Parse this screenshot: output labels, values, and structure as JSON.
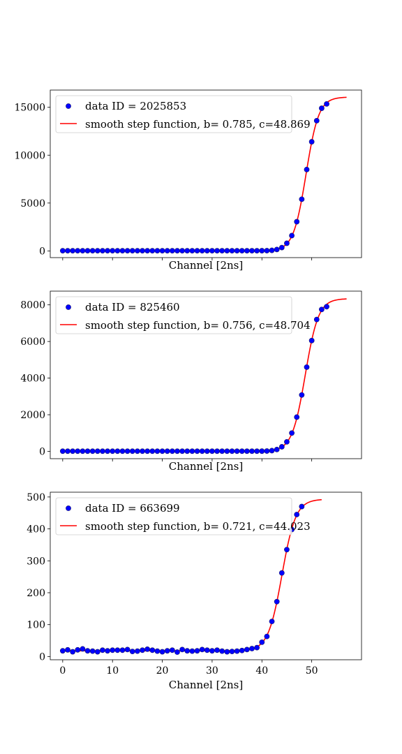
{
  "figure": {
    "colors": {
      "points": "#0000ff",
      "point_edge": "#1a1a66",
      "fit_line": "#ff0000",
      "axes": "#000000",
      "legend_border": "#cccccc"
    }
  },
  "chart_data": [
    {
      "type": "scatter",
      "xlabel": "Channel [2ns]",
      "ylim": [
        -700,
        16800
      ],
      "xlim": [
        -2.5,
        60
      ],
      "yticks": [
        0,
        5000,
        10000,
        15000
      ],
      "ytick_labels": [
        "0",
        "5000",
        "10000",
        "15000"
      ],
      "xticks": [
        0,
        10,
        20,
        30,
        40,
        50
      ],
      "xtick_labels": [
        "",
        "",
        "",
        "",
        "",
        ""
      ],
      "grid": false,
      "legend_position": "upper-left",
      "series": [
        {
          "name": "data ID = 2025853",
          "kind": "points",
          "x": [
            0,
            1,
            2,
            3,
            4,
            5,
            6,
            7,
            8,
            9,
            10,
            11,
            12,
            13,
            14,
            15,
            16,
            17,
            18,
            19,
            20,
            21,
            22,
            23,
            24,
            25,
            26,
            27,
            28,
            29,
            30,
            31,
            32,
            33,
            34,
            35,
            36,
            37,
            38,
            39,
            40,
            41,
            42,
            43,
            44,
            45,
            46,
            47,
            48,
            49,
            50,
            51,
            52,
            53
          ],
          "y": [
            20,
            20,
            20,
            20,
            20,
            20,
            20,
            20,
            20,
            20,
            20,
            20,
            20,
            20,
            20,
            20,
            20,
            20,
            20,
            20,
            20,
            20,
            20,
            20,
            20,
            20,
            20,
            20,
            20,
            20,
            20,
            20,
            20,
            20,
            20,
            20,
            20,
            20,
            20,
            20,
            25,
            30,
            60,
            150,
            350,
            800,
            1600,
            3050,
            5400,
            8500,
            11400,
            13600,
            14900,
            15350
          ]
        },
        {
          "name": "smooth step function, b= 0.785, c=48.869",
          "kind": "fit",
          "b": 0.785,
          "c": 48.869,
          "amplitude": 16050,
          "offset": 20,
          "x_range": [
            0,
            57
          ]
        }
      ]
    },
    {
      "type": "scatter",
      "xlabel": "Channel [2ns]",
      "ylim": [
        -400,
        8750
      ],
      "xlim": [
        -2.5,
        60
      ],
      "yticks": [
        0,
        2000,
        4000,
        6000,
        8000
      ],
      "ytick_labels": [
        "0",
        "2000",
        "4000",
        "6000",
        "8000"
      ],
      "xticks": [
        0,
        10,
        20,
        30,
        40,
        50
      ],
      "xtick_labels": [
        "",
        "",
        "",
        "",
        "",
        ""
      ],
      "grid": false,
      "legend_position": "upper-left",
      "series": [
        {
          "name": "data ID = 825460",
          "kind": "points",
          "x": [
            0,
            1,
            2,
            3,
            4,
            5,
            6,
            7,
            8,
            9,
            10,
            11,
            12,
            13,
            14,
            15,
            16,
            17,
            18,
            19,
            20,
            21,
            22,
            23,
            24,
            25,
            26,
            27,
            28,
            29,
            30,
            31,
            32,
            33,
            34,
            35,
            36,
            37,
            38,
            39,
            40,
            41,
            42,
            43,
            44,
            45,
            46,
            47,
            48,
            49,
            50,
            51,
            52,
            53
          ],
          "y": [
            10,
            10,
            10,
            10,
            10,
            10,
            10,
            10,
            10,
            10,
            10,
            10,
            10,
            10,
            10,
            10,
            10,
            10,
            10,
            10,
            10,
            10,
            10,
            10,
            10,
            10,
            10,
            10,
            10,
            10,
            10,
            10,
            10,
            10,
            10,
            10,
            10,
            10,
            10,
            10,
            12,
            18,
            40,
            100,
            250,
            520,
            1000,
            1870,
            3080,
            4600,
            6050,
            7200,
            7750,
            7900
          ]
        },
        {
          "name": "smooth step function, b= 0.756, c=48.704",
          "kind": "fit",
          "b": 0.756,
          "c": 48.704,
          "amplitude": 8330,
          "offset": 10,
          "x_range": [
            0,
            57
          ]
        }
      ]
    },
    {
      "type": "scatter",
      "xlabel": "Channel [2ns]",
      "ylim": [
        -10,
        515
      ],
      "xlim": [
        -2.5,
        60
      ],
      "yticks": [
        0,
        100,
        200,
        300,
        400,
        500
      ],
      "ytick_labels": [
        "0",
        "100",
        "200",
        "300",
        "400",
        "500"
      ],
      "xticks": [
        0,
        10,
        20,
        30,
        40,
        50
      ],
      "xtick_labels": [
        "0",
        "10",
        "20",
        "30",
        "40",
        "50"
      ],
      "grid": false,
      "legend_position": "upper-left",
      "series": [
        {
          "name": "data ID = 663699",
          "kind": "points",
          "x": [
            0,
            1,
            2,
            3,
            4,
            5,
            6,
            7,
            8,
            9,
            10,
            11,
            12,
            13,
            14,
            15,
            16,
            17,
            18,
            19,
            20,
            21,
            22,
            23,
            24,
            25,
            26,
            27,
            28,
            29,
            30,
            31,
            32,
            33,
            34,
            35,
            36,
            37,
            38,
            39,
            40,
            41,
            42,
            43,
            44,
            45,
            46,
            47,
            48
          ],
          "y": [
            18,
            21,
            15,
            21,
            24,
            18,
            17,
            15,
            20,
            18,
            20,
            20,
            20,
            22,
            16,
            17,
            20,
            23,
            20,
            17,
            15,
            18,
            20,
            14,
            22,
            18,
            17,
            18,
            22,
            20,
            18,
            20,
            17,
            15,
            16,
            17,
            19,
            22,
            25,
            28,
            45,
            63,
            110,
            172,
            262,
            335,
            398,
            445,
            470
          ]
        },
        {
          "name": "smooth step function, b= 0.721, c=44.023",
          "kind": "fit",
          "b": 0.721,
          "c": 44.023,
          "amplitude": 475,
          "offset": 18,
          "x_range": [
            0,
            52
          ]
        }
      ]
    }
  ]
}
